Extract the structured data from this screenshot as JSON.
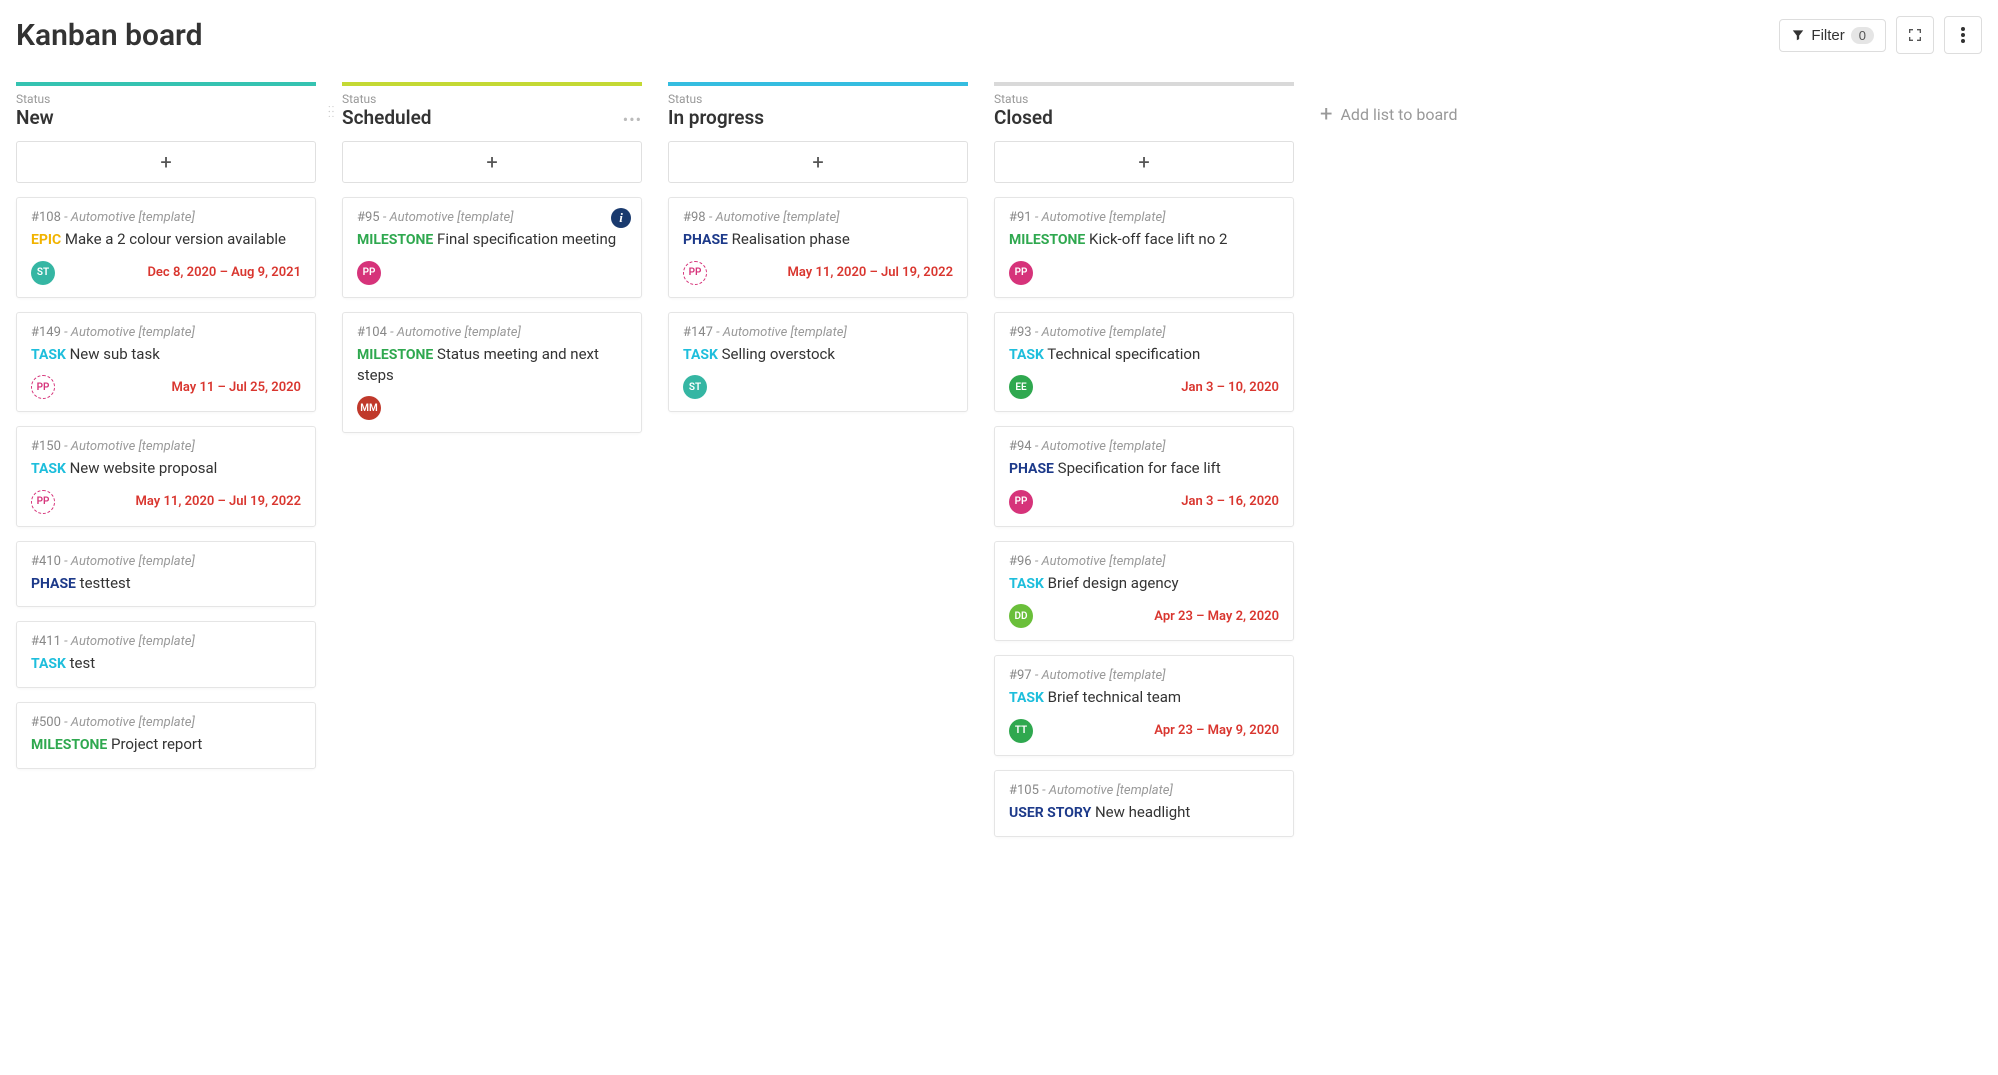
{
  "page_title": "Kanban board",
  "header": {
    "filter_label": "Filter",
    "filter_count": "0"
  },
  "add_list_label": "Add list to board",
  "column_header_label": "Status",
  "colors": {
    "date_red": "#d9362f",
    "type": {
      "EPIC": "#f1b300",
      "MILESTONE": "#2fa84f",
      "TASK": "#1ebedc",
      "PHASE": "#1d3a8a",
      "USER STORY": "#1d3a8a"
    },
    "avatar": {
      "ST": {
        "bg": "#35b6a3",
        "outline": false
      },
      "PP_outline": {
        "bg": "#d6337a",
        "outline": true
      },
      "PP": {
        "bg": "#d6337a",
        "outline": false
      },
      "MM": {
        "bg": "#c0392b",
        "outline": false
      },
      "EE": {
        "bg": "#2fa84f",
        "outline": false
      },
      "DD": {
        "bg": "#6abf3a",
        "outline": false
      },
      "TT": {
        "bg": "#2fa84f",
        "outline": false
      }
    }
  },
  "columns": [
    {
      "title": "New",
      "bar_color": "#35c3b1",
      "show_menu": false,
      "cards": [
        {
          "id": "#108",
          "project": "Automotive [template]",
          "type": "EPIC",
          "title": "Make a 2 colour version available",
          "avatar": "ST",
          "date": "Dec 8, 2020 – Aug 9, 2021"
        },
        {
          "id": "#149",
          "project": "Automotive [template]",
          "type": "TASK",
          "title": "New sub task",
          "avatar": "PP_outline",
          "date": "May 11 – Jul 25, 2020"
        },
        {
          "id": "#150",
          "project": "Automotive [template]",
          "type": "TASK",
          "title": "New website proposal",
          "avatar": "PP_outline",
          "date": "May 11, 2020 – Jul 19, 2022"
        },
        {
          "id": "#410",
          "project": "Automotive [template]",
          "type": "PHASE",
          "title": "testtest"
        },
        {
          "id": "#411",
          "project": "Automotive [template]",
          "type": "TASK",
          "title": "test"
        },
        {
          "id": "#500",
          "project": "Automotive [template]",
          "type": "MILESTONE",
          "title": "Project report"
        }
      ]
    },
    {
      "title": "Scheduled",
      "bar_color": "#c4d934",
      "show_menu": true,
      "cards": [
        {
          "id": "#95",
          "project": "Automotive [template]",
          "type": "MILESTONE",
          "title": "Final specification meeting",
          "avatar": "PP",
          "info": true
        },
        {
          "id": "#104",
          "project": "Automotive [template]",
          "type": "MILESTONE",
          "title": "Status meeting and next steps",
          "avatar": "MM"
        }
      ]
    },
    {
      "title": "In progress",
      "bar_color": "#35bde0",
      "show_menu": false,
      "cards": [
        {
          "id": "#98",
          "project": "Automotive [template]",
          "type": "PHASE",
          "title": "Realisation phase",
          "avatar": "PP_outline",
          "date": "May 11, 2020 – Jul 19, 2022"
        },
        {
          "id": "#147",
          "project": "Automotive [template]",
          "type": "TASK",
          "title": "Selling overstock",
          "avatar": "ST"
        }
      ]
    },
    {
      "title": "Closed",
      "bar_color": "#d9d9d9",
      "show_menu": false,
      "cards": [
        {
          "id": "#91",
          "project": "Automotive [template]",
          "type": "MILESTONE",
          "title": "Kick-off face lift no 2",
          "avatar": "PP"
        },
        {
          "id": "#93",
          "project": "Automotive [template]",
          "type": "TASK",
          "title": "Technical specification",
          "avatar": "EE",
          "date": "Jan 3 – 10, 2020"
        },
        {
          "id": "#94",
          "project": "Automotive [template]",
          "type": "PHASE",
          "title": "Specification for face lift",
          "avatar": "PP",
          "date": "Jan 3 – 16, 2020"
        },
        {
          "id": "#96",
          "project": "Automotive [template]",
          "type": "TASK",
          "title": "Brief design agency",
          "avatar": "DD",
          "date": "Apr 23 – May 2, 2020"
        },
        {
          "id": "#97",
          "project": "Automotive [template]",
          "type": "TASK",
          "title": "Brief technical team",
          "avatar": "TT",
          "date": "Apr 23 – May 9, 2020"
        },
        {
          "id": "#105",
          "project": "Automotive [template]",
          "type": "USER STORY",
          "title": "New headlight"
        }
      ]
    }
  ]
}
